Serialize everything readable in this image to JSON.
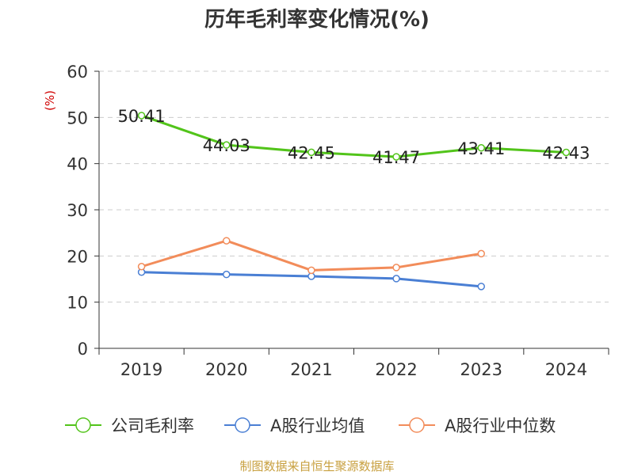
{
  "chart_data": {
    "type": "line",
    "title": "历年毛利率变化情况(%)",
    "ylabel": "(%)",
    "categories": [
      "2019",
      "2020",
      "2021",
      "2022",
      "2023",
      "2024"
    ],
    "ylim": [
      0,
      60
    ],
    "yticks": [
      0,
      10,
      20,
      30,
      40,
      50,
      60
    ],
    "grid": true,
    "legend_position": "bottom",
    "series": [
      {
        "name": "公司毛利率",
        "values": [
          50.41,
          44.03,
          42.45,
          41.47,
          43.41,
          42.43
        ],
        "color": "#52c41a",
        "show_labels": true
      },
      {
        "name": "A股行业均值",
        "values": [
          16.5,
          16.0,
          15.6,
          15.1,
          13.4,
          null
        ],
        "color": "#4a7fd4",
        "show_labels": false
      },
      {
        "name": "A股行业中位数",
        "values": [
          17.7,
          23.3,
          16.9,
          17.5,
          20.5,
          null
        ],
        "color": "#f28c5a",
        "show_labels": false
      }
    ]
  },
  "source_text": "制图数据来自恒生聚源数据库"
}
